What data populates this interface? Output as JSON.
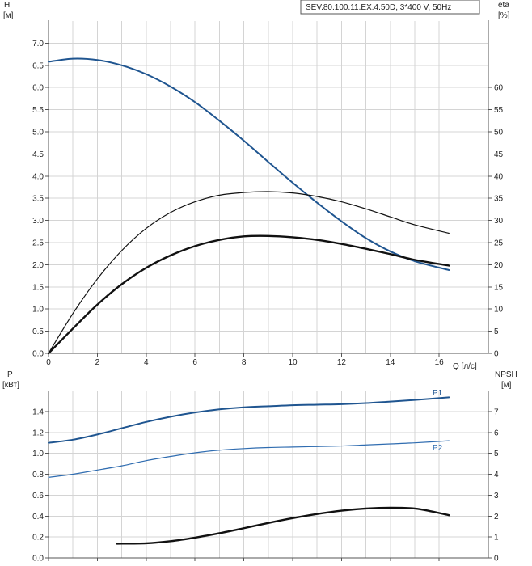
{
  "chart_data": [
    {
      "type": "line",
      "title": "SEV.80.100.11.EX.4.50D, 3*400 V, 50Hz",
      "xlabel": "Q [л/с]",
      "x_ticks": [
        "0",
        "2",
        "4",
        "6",
        "8",
        "10",
        "12",
        "14",
        "16"
      ],
      "xlim": [
        0,
        16.5
      ],
      "grid": true,
      "y_axes": {
        "left": {
          "label_line1": "H",
          "label_line2": "[м]",
          "ylim": [
            0,
            7.5
          ],
          "ticks": [
            "0.0",
            "0.5",
            "1.0",
            "1.5",
            "2.0",
            "2.5",
            "3.0",
            "3.5",
            "4.0",
            "4.5",
            "5.0",
            "5.5",
            "6.0",
            "6.5",
            "7.0"
          ]
        },
        "right": {
          "label_line1": "eta",
          "label_line2": "[%]",
          "ylim": [
            0,
            75
          ],
          "ticks": [
            "0",
            "5",
            "10",
            "15",
            "20",
            "25",
            "30",
            "35",
            "40",
            "45",
            "50",
            "55",
            "60"
          ]
        }
      },
      "series": [
        {
          "color": "#1f5590",
          "axis": "left",
          "width": 2,
          "x": [
            0,
            1,
            2,
            3,
            4,
            5,
            6,
            7,
            8,
            9,
            10,
            11,
            12,
            13,
            14,
            15,
            16.4
          ],
          "y": [
            6.58,
            6.65,
            6.62,
            6.5,
            6.3,
            6.02,
            5.67,
            5.25,
            4.8,
            4.32,
            3.85,
            3.4,
            2.98,
            2.6,
            2.3,
            2.08,
            1.88
          ]
        },
        {
          "color": "#111111",
          "axis": "right",
          "width": 1.2,
          "x": [
            0,
            1,
            2,
            3,
            4,
            5,
            6,
            7,
            8,
            9,
            10,
            11,
            12,
            13,
            14,
            15,
            16.4
          ],
          "y": [
            0,
            9,
            16.8,
            23.2,
            28.2,
            31.8,
            34.2,
            35.7,
            36.3,
            36.5,
            36.2,
            35.4,
            34.2,
            32.6,
            30.8,
            29.0,
            27.1
          ]
        },
        {
          "color": "#111111",
          "axis": "right",
          "width": 2.4,
          "x": [
            0,
            1,
            2,
            3,
            4,
            5,
            6,
            7,
            8,
            9,
            10,
            11,
            12,
            13,
            14,
            15,
            16.4
          ],
          "y": [
            0,
            5.6,
            11,
            15.6,
            19.3,
            22.1,
            24.2,
            25.6,
            26.4,
            26.5,
            26.2,
            25.6,
            24.7,
            23.6,
            22.4,
            21.1,
            19.8
          ]
        }
      ]
    },
    {
      "type": "line",
      "xlim": [
        0,
        16.5
      ],
      "grid": true,
      "y_axes": {
        "left": {
          "label_line1": "P",
          "label_line2": "[кВт]",
          "ylim": [
            0,
            1.6
          ],
          "ticks": [
            "0.0",
            "0.2",
            "0.4",
            "0.6",
            "0.8",
            "1.0",
            "1.2",
            "1.4"
          ]
        },
        "right": {
          "label_line1": "NPSH",
          "label_line2": "[м]",
          "ylim": [
            0,
            8
          ],
          "ticks": [
            "0",
            "1",
            "2",
            "3",
            "4",
            "5",
            "6",
            "7"
          ]
        }
      },
      "series": [
        {
          "name": "P1",
          "color": "#1f5590",
          "axis": "left",
          "width": 2,
          "x": [
            0,
            1,
            2,
            3,
            4,
            5,
            6,
            7,
            8,
            9,
            10,
            11,
            12,
            13,
            14,
            15,
            16.4
          ],
          "y": [
            1.1,
            1.13,
            1.18,
            1.24,
            1.3,
            1.35,
            1.39,
            1.42,
            1.44,
            1.45,
            1.46,
            1.465,
            1.47,
            1.48,
            1.495,
            1.51,
            1.535
          ]
        },
        {
          "name": "P2",
          "color": "#2f6cb0",
          "axis": "left",
          "width": 1.2,
          "x": [
            0,
            1,
            2,
            3,
            4,
            5,
            6,
            7,
            8,
            9,
            10,
            11,
            12,
            13,
            14,
            15,
            16.4
          ],
          "y": [
            0.77,
            0.8,
            0.84,
            0.88,
            0.93,
            0.97,
            1.005,
            1.03,
            1.045,
            1.055,
            1.06,
            1.065,
            1.07,
            1.08,
            1.09,
            1.1,
            1.12
          ]
        },
        {
          "color": "#111111",
          "axis": "right",
          "width": 2.4,
          "x": [
            2.8,
            4,
            5,
            6,
            7,
            8,
            9,
            10,
            11,
            12,
            13,
            14,
            15,
            15.7,
            16.4
          ],
          "y": [
            0.68,
            0.7,
            0.8,
            0.97,
            1.18,
            1.42,
            1.67,
            1.9,
            2.1,
            2.26,
            2.36,
            2.4,
            2.36,
            2.22,
            2.04
          ]
        }
      ]
    }
  ]
}
